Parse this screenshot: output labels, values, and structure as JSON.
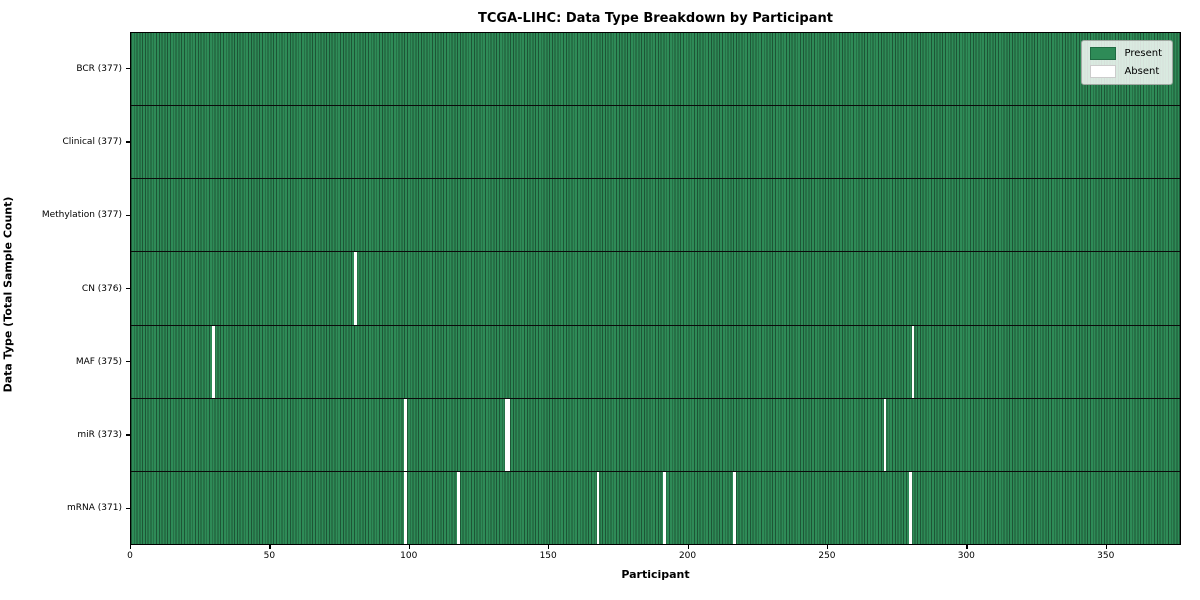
{
  "title": "TCGA-LIHC: Data Type Breakdown by Participant",
  "xlabel": "Participant",
  "ylabel": "Data Type (Total Sample Count)",
  "legend": {
    "entries": [
      {
        "label": "Present",
        "color": "#2e8b57"
      },
      {
        "label": "Absent",
        "color": "#ffffff"
      }
    ]
  },
  "chart_data": {
    "type": "heatmap",
    "title": "TCGA-LIHC: Data Type Breakdown by Participant",
    "xlabel": "Participant",
    "ylabel": "Data Type (Total Sample Count)",
    "x_range": [
      0,
      377
    ],
    "n_participants": 377,
    "x_ticks": [
      0,
      50,
      100,
      150,
      200,
      250,
      300,
      350
    ],
    "legend_position": "upper right",
    "grid": "per-cell vertical edges",
    "rows": [
      {
        "label": "BCR (377)",
        "data_type": "BCR",
        "present_count": 377,
        "absent_count": 0,
        "absent_participants": []
      },
      {
        "label": "Clinical (377)",
        "data_type": "Clinical",
        "present_count": 377,
        "absent_count": 0,
        "absent_participants": []
      },
      {
        "label": "Methylation (377)",
        "data_type": "Methylation",
        "present_count": 377,
        "absent_count": 0,
        "absent_participants": []
      },
      {
        "label": "CN (376)",
        "data_type": "CN",
        "present_count": 376,
        "absent_count": 1,
        "absent_participants": [
          80
        ]
      },
      {
        "label": "MAF (375)",
        "data_type": "MAF",
        "present_count": 375,
        "absent_count": 2,
        "absent_participants": [
          29,
          280
        ]
      },
      {
        "label": "miR (373)",
        "data_type": "miR",
        "present_count": 373,
        "absent_count": 4,
        "absent_participants": [
          98,
          134,
          135,
          270
        ]
      },
      {
        "label": "mRNA (371)",
        "data_type": "mRNA",
        "present_count": 371,
        "absent_count": 6,
        "absent_participants": [
          98,
          117,
          167,
          191,
          216,
          279
        ]
      }
    ],
    "colors": {
      "present": "#2e8b57",
      "absent": "#ffffff",
      "cell_edge": "rgba(0,0,0,0.38)",
      "row_separator": "#0b0b0b"
    }
  }
}
